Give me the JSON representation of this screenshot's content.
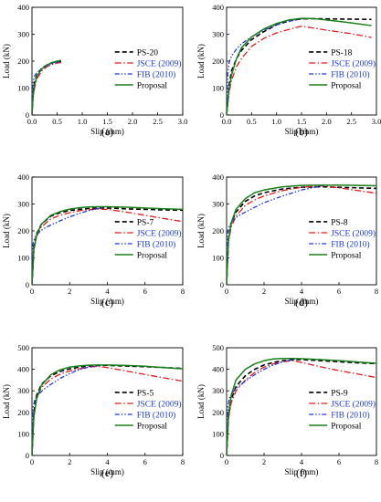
{
  "figure": {
    "colors": {
      "test": "#000000",
      "jsce": "#e31a1c",
      "fib": "#1f3bd6",
      "proposal": "#1a7f1a",
      "blue_text": "#1f3bd6"
    }
  },
  "chart_data": [
    {
      "type": "line",
      "panel_label": "(a)",
      "xlabel": "Slip (mm)",
      "ylabel": "Load (kN)",
      "xlim": [
        0,
        3
      ],
      "ylim": [
        0,
        400
      ],
      "xticks": [
        "0.0",
        "0.5",
        "1.0",
        "1.5",
        "2.0",
        "2.5",
        "3.0"
      ],
      "yticks": [
        "0",
        "100",
        "200",
        "300",
        "400"
      ],
      "legend_position": "right",
      "series": [
        {
          "name": "PS-20",
          "style": "test",
          "x": [
            0,
            0.02,
            0.05,
            0.1,
            0.2,
            0.3,
            0.4,
            0.5,
            0.58
          ],
          "y": [
            0,
            80,
            120,
            150,
            175,
            186,
            194,
            198,
            200
          ]
        },
        {
          "name": "JSCE (2009)",
          "style": "jsce",
          "x": [
            0,
            0.02,
            0.05,
            0.1,
            0.2,
            0.3,
            0.4,
            0.5,
            0.58
          ],
          "y": [
            0,
            60,
            100,
            135,
            165,
            180,
            188,
            193,
            195
          ]
        },
        {
          "name": "FIB (2010)",
          "style": "fib",
          "x": [
            0,
            0.01,
            0.03,
            0.06,
            0.1,
            0.2,
            0.3,
            0.4,
            0.5,
            0.58
          ],
          "y": [
            0,
            95,
            130,
            148,
            158,
            172,
            182,
            190,
            196,
            200
          ]
        },
        {
          "name": "Proposal",
          "style": "proposal",
          "x": [
            0,
            0.02,
            0.05,
            0.1,
            0.2,
            0.3,
            0.4,
            0.5,
            0.58
          ],
          "y": [
            0,
            65,
            110,
            145,
            172,
            186,
            195,
            200,
            203
          ]
        }
      ]
    },
    {
      "type": "line",
      "panel_label": "(b)",
      "xlabel": "Slip (mm)",
      "ylabel": "Load (kN)",
      "xlim": [
        0,
        3
      ],
      "ylim": [
        0,
        400
      ],
      "xticks": [
        "0.0",
        "0.5",
        "1.0",
        "1.5",
        "2.0",
        "2.5",
        "3.0"
      ],
      "yticks": [
        "0",
        "100",
        "200",
        "300",
        "400"
      ],
      "legend_position": "right",
      "series": [
        {
          "name": "PS-18",
          "style": "test",
          "x": [
            0,
            0.05,
            0.1,
            0.2,
            0.3,
            0.5,
            0.75,
            1.0,
            1.25,
            1.5,
            1.75,
            2.0,
            2.5,
            2.9
          ],
          "y": [
            0,
            110,
            165,
            210,
            240,
            280,
            310,
            335,
            350,
            357,
            358,
            357,
            356,
            355
          ]
        },
        {
          "name": "JSCE (2009)",
          "style": "jsce",
          "x": [
            0,
            0.05,
            0.1,
            0.2,
            0.3,
            0.5,
            0.75,
            1.0,
            1.25,
            1.5,
            2.0,
            2.5,
            2.9
          ],
          "y": [
            0,
            85,
            130,
            180,
            210,
            255,
            285,
            305,
            318,
            330,
            315,
            302,
            288
          ]
        },
        {
          "name": "FIB (2010)",
          "style": "fib",
          "x": [
            0,
            0.02,
            0.05,
            0.1,
            0.2,
            0.3,
            0.5,
            0.75,
            1.0,
            1.25,
            1.5,
            1.6
          ],
          "y": [
            0,
            150,
            195,
            220,
            245,
            265,
            290,
            315,
            335,
            348,
            357,
            360
          ]
        },
        {
          "name": "Proposal",
          "style": "proposal",
          "x": [
            0,
            0.05,
            0.1,
            0.2,
            0.3,
            0.5,
            0.75,
            1.0,
            1.25,
            1.5,
            1.75,
            2.0,
            2.5,
            2.9
          ],
          "y": [
            0,
            95,
            150,
            210,
            250,
            290,
            320,
            340,
            353,
            359,
            358,
            353,
            342,
            332
          ]
        }
      ]
    },
    {
      "type": "line",
      "panel_label": "(c)",
      "xlabel": "Slip (mm)",
      "ylabel": "Load (kN)",
      "xlim": [
        0,
        8
      ],
      "ylim": [
        0,
        400
      ],
      "xticks": [
        "0",
        "2",
        "4",
        "6",
        "8"
      ],
      "yticks": [
        "0",
        "100",
        "200",
        "300",
        "400"
      ],
      "legend_position": "right",
      "series": [
        {
          "name": "PS-7",
          "style": "test",
          "x": [
            0,
            0.1,
            0.25,
            0.5,
            1,
            1.5,
            2,
            2.5,
            3,
            3.5,
            4,
            5,
            6,
            7,
            8
          ],
          "y": [
            0,
            140,
            190,
            225,
            255,
            268,
            276,
            280,
            283,
            285,
            285,
            282,
            280,
            278,
            277
          ]
        },
        {
          "name": "JSCE (2009)",
          "style": "jsce",
          "x": [
            0,
            0.1,
            0.25,
            0.5,
            1,
            1.5,
            2,
            2.5,
            3,
            3.5,
            4,
            5,
            6,
            7,
            8
          ],
          "y": [
            0,
            130,
            180,
            215,
            245,
            258,
            268,
            275,
            279,
            281,
            280,
            270,
            258,
            246,
            235
          ]
        },
        {
          "name": "FIB (2010)",
          "style": "fib",
          "x": [
            0,
            0.05,
            0.15,
            0.3,
            0.6,
            1,
            1.5,
            2,
            2.5,
            3,
            3.5,
            3.8
          ],
          "y": [
            0,
            150,
            175,
            190,
            208,
            222,
            238,
            252,
            265,
            275,
            283,
            286
          ]
        },
        {
          "name": "Proposal",
          "style": "proposal",
          "x": [
            0,
            0.1,
            0.25,
            0.5,
            1,
            1.5,
            2,
            2.5,
            3,
            3.5,
            4,
            5,
            6,
            7,
            8
          ],
          "y": [
            0,
            130,
            185,
            225,
            258,
            272,
            281,
            286,
            289,
            290,
            290,
            288,
            285,
            282,
            280
          ]
        }
      ]
    },
    {
      "type": "line",
      "panel_label": "(d)",
      "xlabel": "Slip (mm)",
      "ylabel": "Load (kN)",
      "xlim": [
        0,
        8
      ],
      "ylim": [
        0,
        400
      ],
      "xticks": [
        "0",
        "2",
        "4",
        "6",
        "8"
      ],
      "yticks": [
        "0",
        "100",
        "200",
        "300",
        "400"
      ],
      "legend_position": "right",
      "series": [
        {
          "name": "PS-8",
          "style": "test",
          "x": [
            0,
            0.1,
            0.25,
            0.5,
            1,
            1.5,
            2,
            3,
            4,
            5,
            6,
            7,
            8
          ],
          "y": [
            0,
            170,
            230,
            270,
            310,
            330,
            342,
            356,
            362,
            364,
            362,
            360,
            358
          ]
        },
        {
          "name": "JSCE (2009)",
          "style": "jsce",
          "x": [
            0,
            0.1,
            0.25,
            0.5,
            1,
            1.5,
            2,
            3,
            4,
            5,
            6,
            7,
            8
          ],
          "y": [
            0,
            160,
            215,
            255,
            295,
            315,
            330,
            350,
            362,
            368,
            360,
            350,
            340
          ]
        },
        {
          "name": "FIB (2010)",
          "style": "fib",
          "x": [
            0,
            0.05,
            0.15,
            0.3,
            0.6,
            1,
            1.5,
            2,
            3,
            4,
            5,
            5.2
          ],
          "y": [
            0,
            190,
            220,
            235,
            255,
            270,
            288,
            305,
            330,
            352,
            366,
            368
          ]
        },
        {
          "name": "Proposal",
          "style": "proposal",
          "x": [
            0,
            0.1,
            0.25,
            0.5,
            1,
            1.5,
            2,
            3,
            4,
            5,
            6,
            7,
            8
          ],
          "y": [
            0,
            165,
            230,
            280,
            320,
            342,
            352,
            364,
            369,
            370,
            370,
            369,
            368
          ]
        }
      ]
    },
    {
      "type": "line",
      "panel_label": "(e)",
      "xlabel": "Slip (mm)",
      "ylabel": "Load (kN)",
      "xlim": [
        0,
        8
      ],
      "ylim": [
        0,
        500
      ],
      "xticks": [
        "0",
        "2",
        "4",
        "6",
        "8"
      ],
      "yticks": [
        "0",
        "100",
        "200",
        "300",
        "400",
        "500"
      ],
      "legend_position": "right",
      "series": [
        {
          "name": "PS-5",
          "style": "test",
          "x": [
            0,
            0.1,
            0.25,
            0.5,
            1,
            1.5,
            2,
            2.5,
            3,
            3.5,
            4,
            5,
            6,
            7,
            8
          ],
          "y": [
            0,
            200,
            280,
            330,
            370,
            390,
            402,
            410,
            415,
            418,
            418,
            415,
            412,
            408,
            404
          ]
        },
        {
          "name": "JSCE (2009)",
          "style": "jsce",
          "x": [
            0,
            0.1,
            0.25,
            0.5,
            1,
            1.5,
            2,
            2.5,
            3,
            3.5,
            4,
            5,
            6,
            7,
            8
          ],
          "y": [
            0,
            190,
            265,
            315,
            355,
            378,
            392,
            402,
            410,
            414,
            408,
            392,
            376,
            360,
            345
          ]
        },
        {
          "name": "FIB (2010)",
          "style": "fib",
          "x": [
            0,
            0.05,
            0.15,
            0.3,
            0.6,
            1,
            1.5,
            2,
            2.5,
            3,
            3.5
          ],
          "y": [
            0,
            220,
            260,
            280,
            305,
            330,
            358,
            380,
            398,
            410,
            416
          ]
        },
        {
          "name": "Proposal",
          "style": "proposal",
          "x": [
            0,
            0.1,
            0.25,
            0.5,
            1,
            1.5,
            2,
            2.5,
            3,
            3.5,
            4,
            5,
            6,
            7,
            8
          ],
          "y": [
            0,
            180,
            265,
            325,
            375,
            398,
            410,
            416,
            419,
            420,
            420,
            418,
            414,
            408,
            402
          ]
        }
      ]
    },
    {
      "type": "line",
      "panel_label": "(f)",
      "xlabel": "Slip (mm)",
      "ylabel": "Load (kN)",
      "xlim": [
        0,
        8
      ],
      "ylim": [
        0,
        500
      ],
      "xticks": [
        "0",
        "2",
        "4",
        "6",
        "8"
      ],
      "yticks": [
        "0",
        "100",
        "200",
        "300",
        "400",
        "500"
      ],
      "legend_position": "right",
      "series": [
        {
          "name": "PS-9",
          "style": "test",
          "x": [
            0,
            0.1,
            0.25,
            0.5,
            1,
            1.5,
            2,
            2.5,
            3,
            3.5,
            4,
            5,
            6,
            7,
            8
          ],
          "y": [
            0,
            180,
            260,
            320,
            370,
            400,
            420,
            432,
            440,
            444,
            445,
            440,
            435,
            430,
            426
          ]
        },
        {
          "name": "JSCE (2009)",
          "style": "jsce",
          "x": [
            0,
            0.1,
            0.25,
            0.5,
            1,
            1.5,
            2,
            2.5,
            3,
            3.5,
            4,
            5,
            6,
            7,
            8
          ],
          "y": [
            0,
            170,
            245,
            300,
            350,
            385,
            410,
            425,
            435,
            440,
            432,
            412,
            394,
            378,
            362
          ]
        },
        {
          "name": "FIB (2010)",
          "style": "fib",
          "x": [
            0,
            0.05,
            0.15,
            0.3,
            0.6,
            1,
            1.5,
            2,
            2.5,
            3,
            3.5,
            3.8
          ],
          "y": [
            0,
            220,
            265,
            290,
            320,
            345,
            375,
            400,
            420,
            435,
            444,
            447
          ]
        },
        {
          "name": "Proposal",
          "style": "proposal",
          "x": [
            0,
            0.1,
            0.25,
            0.5,
            1,
            1.5,
            2,
            2.5,
            3,
            3.5,
            4,
            5,
            6,
            7,
            8
          ],
          "y": [
            0,
            190,
            280,
            350,
            400,
            425,
            440,
            448,
            450,
            450,
            449,
            445,
            440,
            434,
            428
          ]
        }
      ]
    }
  ]
}
